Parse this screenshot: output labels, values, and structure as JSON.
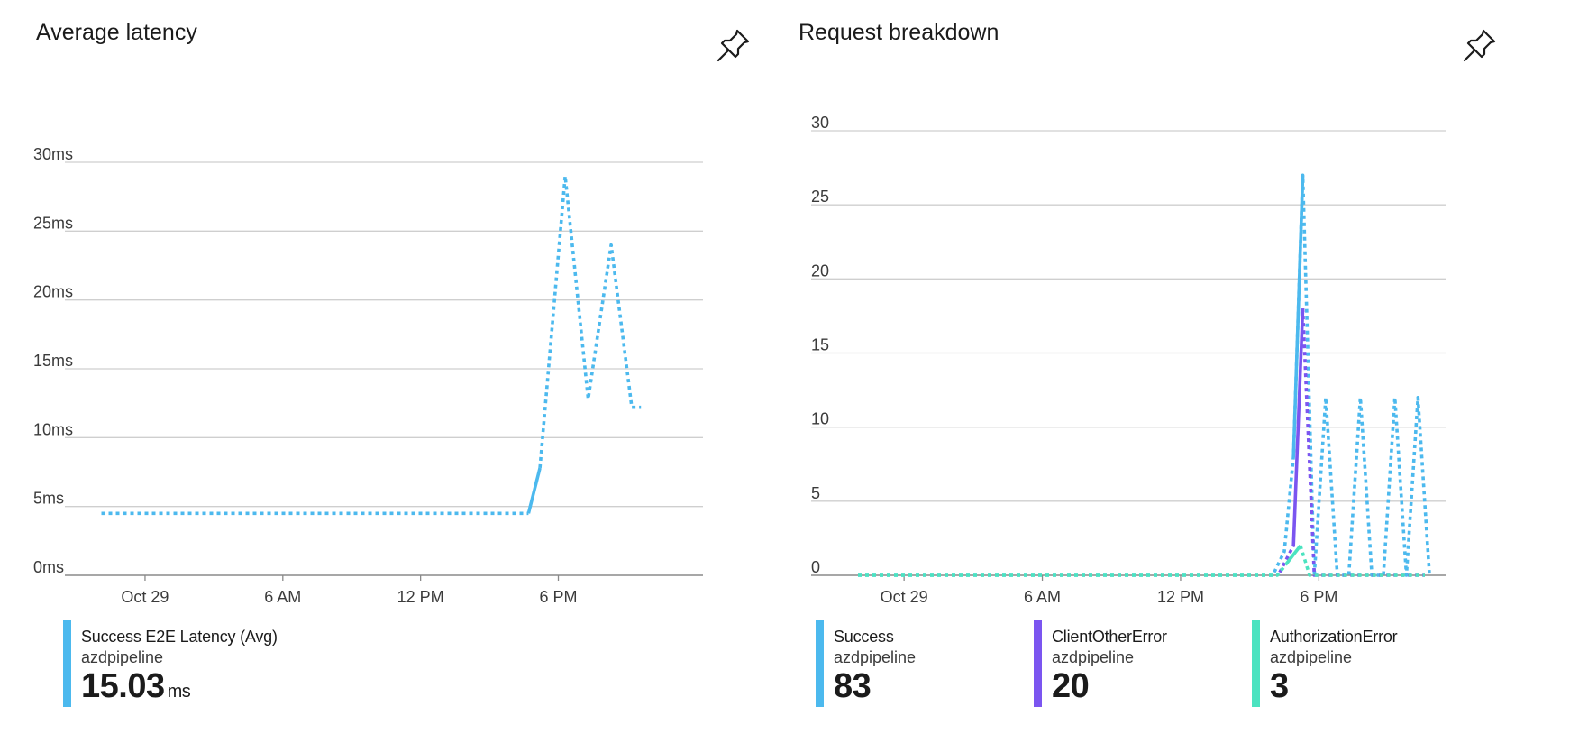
{
  "colors": {
    "success": "#4cb9ee",
    "client_other_error": "#7b55f0",
    "authorization_error": "#4be3c0",
    "gridline": "#cfcfcf",
    "axis": "#8a8a8a"
  },
  "icons": {
    "pin": "pin-icon"
  },
  "chart_data": [
    {
      "type": "line",
      "title": "Average latency",
      "y_tick_labels": [
        "0ms",
        "5ms",
        "10ms",
        "15ms",
        "20ms",
        "25ms",
        "30ms"
      ],
      "y_ticks": [
        0,
        5,
        10,
        15,
        20,
        25,
        30
      ],
      "ylim": [
        0,
        30
      ],
      "x_tick_labels": [
        "Oct 29",
        "6 AM",
        "12 PM",
        "6 PM"
      ],
      "x_ticks": [
        0,
        6,
        12,
        18
      ],
      "xlim": [
        -2,
        24.3
      ],
      "grid": true,
      "series": [
        {
          "name": "Success E2E Latency (Avg)",
          "source": "azdpipeline",
          "summary_value": "15.03",
          "summary_unit": "ms",
          "color": "#4cb9ee",
          "segments": [
            {
              "style": "dotted",
              "points": [
                [
                  -1.9,
                  4.5
                ],
                [
                  16.7,
                  4.5
                ]
              ]
            },
            {
              "style": "solid",
              "points": [
                [
                  16.7,
                  4.5
                ],
                [
                  17.2,
                  7.8
                ]
              ]
            },
            {
              "style": "dotted",
              "points": [
                [
                  17.2,
                  7.8
                ],
                [
                  18.3,
                  29
                ],
                [
                  19.3,
                  12.8
                ],
                [
                  20.3,
                  24
                ],
                [
                  21.2,
                  12.2
                ],
                [
                  21.6,
                  12.2
                ]
              ]
            }
          ]
        }
      ]
    },
    {
      "type": "line",
      "title": "Request breakdown",
      "y_tick_labels": [
        "0",
        "5",
        "10",
        "15",
        "20",
        "25",
        "30"
      ],
      "y_ticks": [
        0,
        5,
        10,
        15,
        20,
        25,
        30
      ],
      "ylim": [
        0,
        30
      ],
      "x_tick_labels": [
        "Oct 29",
        "6 AM",
        "12 PM",
        "6 PM"
      ],
      "x_ticks": [
        0,
        6,
        12,
        18
      ],
      "xlim": [
        -2,
        23.5
      ],
      "grid": true,
      "series": [
        {
          "name": "Success",
          "source": "azdpipeline",
          "summary_value": "83",
          "color": "#4cb9ee",
          "segments": [
            {
              "style": "dotted",
              "points": [
                [
                  -2,
                  0
                ],
                [
                  16,
                  0
                ],
                [
                  16.5,
                  1.6
                ],
                [
                  16.9,
                  8
                ],
                [
                  17.3,
                  27
                ],
                [
                  17.8,
                  0
                ],
                [
                  18.3,
                  12
                ],
                [
                  18.8,
                  0
                ],
                [
                  19.3,
                  0
                ],
                [
                  19.8,
                  12
                ],
                [
                  20.3,
                  0
                ],
                [
                  20.8,
                  0
                ],
                [
                  21.3,
                  12
                ],
                [
                  21.8,
                  0
                ],
                [
                  22.3,
                  12
                ],
                [
                  22.8,
                  0
                ],
                [
                  22.8,
                  0
                ]
              ]
            },
            {
              "style": "solid",
              "points": [
                [
                  16.9,
                  8
                ],
                [
                  17.3,
                  27
                ]
              ]
            }
          ]
        },
        {
          "name": "ClientOtherError",
          "source": "azdpipeline",
          "summary_value": "20",
          "color": "#7b55f0",
          "segments": [
            {
              "style": "dotted",
              "points": [
                [
                  16.3,
                  0.2
                ],
                [
                  16.9,
                  2
                ]
              ]
            },
            {
              "style": "solid",
              "points": [
                [
                  16.9,
                  2
                ],
                [
                  17.3,
                  18
                ]
              ]
            },
            {
              "style": "dotted",
              "points": [
                [
                  17.3,
                  18
                ],
                [
                  17.8,
                  0
                ],
                [
                  22.6,
                  0
                ]
              ]
            }
          ]
        },
        {
          "name": "AuthorizationError",
          "source": "azdpipeline",
          "summary_value": "3",
          "color": "#4be3c0",
          "segments": [
            {
              "style": "dotted",
              "points": [
                [
                  -2,
                  0
                ],
                [
                  16.2,
                  0
                ],
                [
                  16.6,
                  0.8
                ]
              ]
            },
            {
              "style": "solid",
              "points": [
                [
                  16.6,
                  0.8
                ],
                [
                  17.2,
                  2
                ]
              ]
            },
            {
              "style": "dotted",
              "points": [
                [
                  17.2,
                  2
                ],
                [
                  17.6,
                  0
                ],
                [
                  22.6,
                  0
                ]
              ]
            }
          ]
        }
      ]
    }
  ]
}
